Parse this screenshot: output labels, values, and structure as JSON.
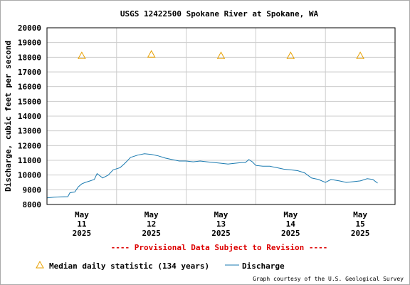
{
  "chart_data": {
    "type": "line",
    "title": "USGS 12422500 Spokane River at Spokane, WA",
    "ylabel": "Discharge, cubic feet per second",
    "ylim": [
      8000,
      20000
    ],
    "y_ticks": [
      8000,
      9000,
      10000,
      11000,
      12000,
      13000,
      14000,
      15000,
      16000,
      17000,
      18000,
      19000,
      20000
    ],
    "y_tick_labels": [
      "8000",
      "9000",
      "10000",
      "11000",
      "12000",
      "13000",
      "14000",
      "15000",
      "16000",
      "17000",
      "18000",
      "19000",
      "20000"
    ],
    "x_range": [
      0,
      5
    ],
    "x_ticks": [
      {
        "x": 0.5,
        "line1": "May",
        "line2": "11",
        "line3": "2025"
      },
      {
        "x": 1.5,
        "line1": "May",
        "line2": "12",
        "line3": "2025"
      },
      {
        "x": 2.5,
        "line1": "May",
        "line2": "13",
        "line3": "2025"
      },
      {
        "x": 3.5,
        "line1": "May",
        "line2": "14",
        "line3": "2025"
      },
      {
        "x": 4.5,
        "line1": "May",
        "line2": "15",
        "line3": "2025"
      }
    ],
    "x_gridlines": [
      1,
      2,
      3,
      4
    ],
    "grid": true,
    "provisional_note": "---- Provisional Data Subject to Revision ----",
    "series": [
      {
        "name": "Discharge",
        "color": "#1a7ab0",
        "points": [
          [
            0.0,
            8450
          ],
          [
            0.1,
            8500
          ],
          [
            0.2,
            8520
          ],
          [
            0.3,
            8530
          ],
          [
            0.33,
            8800
          ],
          [
            0.4,
            8850
          ],
          [
            0.45,
            9200
          ],
          [
            0.5,
            9400
          ],
          [
            0.55,
            9500
          ],
          [
            0.62,
            9600
          ],
          [
            0.68,
            9700
          ],
          [
            0.72,
            10100
          ],
          [
            0.8,
            9800
          ],
          [
            0.88,
            10000
          ],
          [
            0.95,
            10350
          ],
          [
            1.05,
            10500
          ],
          [
            1.12,
            10800
          ],
          [
            1.2,
            11200
          ],
          [
            1.3,
            11350
          ],
          [
            1.4,
            11450
          ],
          [
            1.5,
            11400
          ],
          [
            1.6,
            11300
          ],
          [
            1.7,
            11150
          ],
          [
            1.8,
            11050
          ],
          [
            1.9,
            10950
          ],
          [
            2.0,
            10950
          ],
          [
            2.1,
            10900
          ],
          [
            2.2,
            10950
          ],
          [
            2.3,
            10900
          ],
          [
            2.4,
            10850
          ],
          [
            2.5,
            10800
          ],
          [
            2.6,
            10750
          ],
          [
            2.7,
            10800
          ],
          [
            2.8,
            10850
          ],
          [
            2.85,
            10850
          ],
          [
            2.9,
            11050
          ],
          [
            2.95,
            10900
          ],
          [
            3.0,
            10650
          ],
          [
            3.1,
            10600
          ],
          [
            3.2,
            10600
          ],
          [
            3.3,
            10500
          ],
          [
            3.4,
            10400
          ],
          [
            3.5,
            10350
          ],
          [
            3.6,
            10300
          ],
          [
            3.7,
            10150
          ],
          [
            3.8,
            9800
          ],
          [
            3.9,
            9700
          ],
          [
            4.0,
            9500
          ],
          [
            4.08,
            9700
          ],
          [
            4.2,
            9600
          ],
          [
            4.3,
            9500
          ],
          [
            4.4,
            9550
          ],
          [
            4.5,
            9600
          ],
          [
            4.6,
            9750
          ],
          [
            4.68,
            9700
          ],
          [
            4.75,
            9450
          ]
        ]
      }
    ],
    "median_points": {
      "name": "Median daily statistic (134 years)",
      "color": "#e8a000",
      "points": [
        [
          0.5,
          18100
        ],
        [
          1.5,
          18200
        ],
        [
          2.5,
          18100
        ],
        [
          3.5,
          18100
        ],
        [
          4.5,
          18100
        ]
      ]
    }
  },
  "credit": "Graph courtesy of the U.S. Geological Survey"
}
